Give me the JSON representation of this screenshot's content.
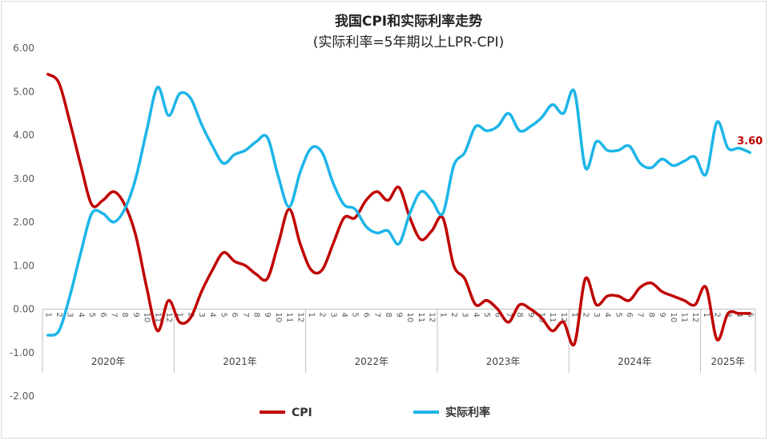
{
  "chart_data": {
    "type": "line",
    "title": "我国CPI和实际利率走势",
    "subtitle": "(实际利率=5年期以上LPR-CPI)",
    "xlabel": "",
    "ylabel": "",
    "ylim": [
      -2,
      6
    ],
    "yticks": [
      "-2.00",
      "-1.00",
      "0.00",
      "1.00",
      "2.00",
      "3.00",
      "4.00",
      "5.00",
      "6.00"
    ],
    "grid": false,
    "legend_position": "bottom",
    "years": [
      {
        "label": "2020年",
        "months": [
          "1",
          "2",
          "3",
          "4",
          "5",
          "6",
          "7",
          "8",
          "9",
          "10",
          "11",
          "12"
        ]
      },
      {
        "label": "2021年",
        "months": [
          "1",
          "2",
          "3",
          "4",
          "5",
          "6",
          "7",
          "8",
          "9",
          "10",
          "11",
          "12"
        ]
      },
      {
        "label": "2022年",
        "months": [
          "1",
          "2",
          "3",
          "4",
          "5",
          "6",
          "7",
          "8",
          "9",
          "10",
          "11",
          "12"
        ]
      },
      {
        "label": "2023年",
        "months": [
          "1",
          "2",
          "3",
          "4",
          "5",
          "6",
          "7",
          "8",
          "9",
          "10",
          "11",
          "12"
        ]
      },
      {
        "label": "2024年",
        "months": [
          "1",
          "2",
          "3",
          "4",
          "5",
          "6",
          "7",
          "8",
          "9",
          "10",
          "11",
          "12"
        ]
      },
      {
        "label": "2025年",
        "months": [
          "1",
          "2",
          "3",
          "4",
          "5"
        ]
      }
    ],
    "series": [
      {
        "name": "CPI",
        "color": "#c00000",
        "values": [
          5.4,
          5.2,
          4.3,
          3.3,
          2.4,
          2.5,
          2.7,
          2.4,
          1.7,
          0.5,
          -0.5,
          0.2,
          -0.3,
          -0.2,
          0.4,
          0.9,
          1.3,
          1.1,
          1.0,
          0.8,
          0.7,
          1.5,
          2.3,
          1.5,
          0.9,
          0.9,
          1.5,
          2.1,
          2.1,
          2.5,
          2.7,
          2.5,
          2.8,
          2.1,
          1.6,
          1.8,
          2.1,
          1.0,
          0.7,
          0.1,
          0.2,
          0.0,
          -0.3,
          0.1,
          0.0,
          -0.2,
          -0.5,
          -0.3,
          -0.8,
          0.7,
          0.1,
          0.3,
          0.3,
          0.2,
          0.5,
          0.6,
          0.4,
          0.3,
          0.2,
          0.1,
          0.5,
          -0.7,
          -0.1,
          -0.1,
          -0.1
        ]
      },
      {
        "name": "实际利率",
        "color": "#1cb5e8",
        "values": [
          -0.6,
          -0.5,
          0.3,
          1.3,
          2.2,
          2.2,
          2.0,
          2.3,
          3.0,
          4.1,
          5.1,
          4.45,
          4.95,
          4.85,
          4.25,
          3.75,
          3.35,
          3.55,
          3.65,
          3.85,
          3.95,
          3.05,
          2.35,
          3.15,
          3.7,
          3.6,
          2.9,
          2.4,
          2.3,
          1.9,
          1.75,
          1.8,
          1.5,
          2.2,
          2.7,
          2.5,
          2.2,
          3.3,
          3.6,
          4.2,
          4.1,
          4.2,
          4.5,
          4.1,
          4.2,
          4.4,
          4.7,
          4.5,
          5.0,
          3.25,
          3.85,
          3.65,
          3.65,
          3.75,
          3.35,
          3.25,
          3.45,
          3.3,
          3.4,
          3.5,
          3.1,
          4.3,
          3.7,
          3.7,
          3.6
        ]
      }
    ],
    "annotations": [
      {
        "text": "3.60",
        "series": "实际利率",
        "index": 64,
        "color": "#c00000"
      }
    ]
  }
}
